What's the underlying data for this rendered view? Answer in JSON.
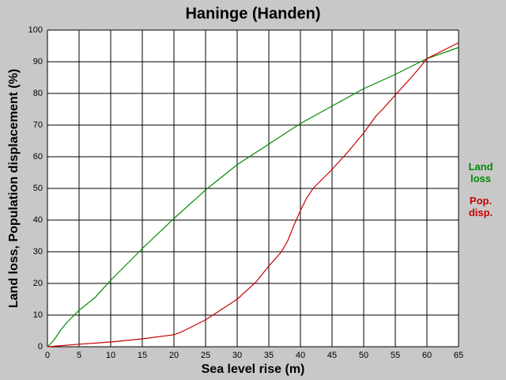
{
  "chart_data": {
    "type": "line",
    "title": "Haninge (Handen)",
    "x_label": "Sea level rise (m)",
    "y_label": "Land loss, Population displacement (%)",
    "xlim": [
      0,
      65
    ],
    "xticks": [
      0,
      5,
      10,
      15,
      20,
      25,
      30,
      35,
      40,
      45,
      50,
      55,
      60,
      65
    ],
    "ylim": [
      0,
      100
    ],
    "yticks": [
      0,
      10,
      20,
      30,
      40,
      50,
      60,
      70,
      80,
      90,
      100
    ],
    "grid": true,
    "series": [
      {
        "name": "Land loss",
        "color": "#008c00",
        "x": [
          0,
          1,
          2,
          3,
          5,
          7.5,
          10,
          15,
          20,
          25,
          27.5,
          30,
          35,
          40,
          45,
          50,
          55,
          60,
          65
        ],
        "values": [
          0,
          2,
          5,
          7.5,
          11.5,
          15.5,
          21,
          31,
          40.5,
          49.5,
          53.5,
          57.5,
          64,
          70.5,
          76,
          81.5,
          86,
          91,
          94.5
        ]
      },
      {
        "name": "Pop. disp.",
        "color": "#c80000",
        "x": [
          0,
          5,
          10,
          15,
          20,
          21,
          22,
          25,
          30,
          33,
          35,
          37,
          38,
          39,
          40,
          41,
          42,
          45,
          47.5,
          50,
          52,
          53,
          55,
          57.5,
          59,
          60,
          62,
          65
        ],
        "values": [
          0,
          0.8,
          1.5,
          2.5,
          3.8,
          4.5,
          5.5,
          8.5,
          15,
          20.5,
          25.5,
          30,
          33.5,
          38.5,
          43,
          47,
          50,
          56,
          61.5,
          67.5,
          73,
          75,
          79.5,
          85,
          88.5,
          91,
          93,
          96
        ]
      }
    ]
  }
}
